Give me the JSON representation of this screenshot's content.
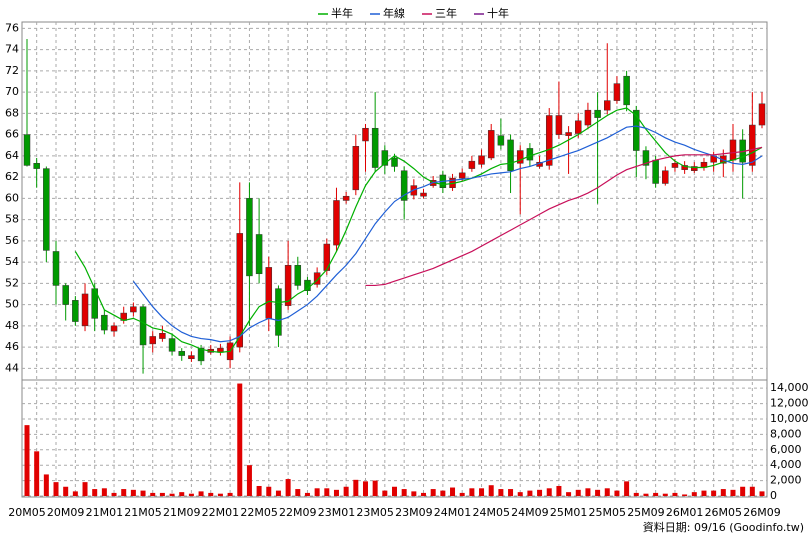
{
  "chart_data": {
    "type": "candlestick",
    "footer": "資料日期: 09/16 (Goodinfo.tw)",
    "categories": [
      "20M05",
      null,
      null,
      null,
      "20M09",
      null,
      null,
      null,
      "21M01",
      null,
      null,
      null,
      "21M05",
      null,
      null,
      null,
      "21M09",
      null,
      null,
      null,
      "22M01",
      null,
      null,
      null,
      "22M05",
      null,
      null,
      null,
      "22M09",
      null,
      null,
      null,
      "23M01",
      null,
      null,
      null,
      "23M05",
      null,
      null,
      null,
      "23M09",
      null,
      null,
      null,
      "24M01",
      null,
      null,
      null,
      "24M05",
      null,
      null,
      null,
      "24M09",
      null,
      null,
      null,
      "25M01",
      null,
      null,
      null,
      "25M05",
      null,
      null,
      null,
      "25M09",
      null,
      null,
      null,
      "26M01",
      null,
      null,
      null,
      "26M05",
      null,
      null,
      null,
      "26M09"
    ],
    "up_color": "#e00000",
    "down_color": "#009a00",
    "open": [
      66,
      63.3,
      62.8,
      55,
      51.8,
      50.4,
      48,
      51.5,
      49,
      47.5,
      48.5,
      49.3,
      49.8,
      46.3,
      46.8,
      46.8,
      45.6,
      44.9,
      45.9,
      45.5,
      45.5,
      44.8,
      46,
      60,
      56.6,
      48.7,
      51.5,
      49.9,
      53.7,
      52.3,
      51.9,
      53.2,
      55.6,
      59.8,
      60.8,
      65.4,
      66.6,
      64.5,
      63.8,
      62.6,
      60.3,
      60.2,
      61.2,
      62.2,
      61,
      61.9,
      62.8,
      63.2,
      63.8,
      65.9,
      65.5,
      63.3,
      64.7,
      63,
      63.1,
      66,
      65.9,
      66.1,
      66.9,
      68.3,
      68.3,
      69.2,
      71.5,
      68.3,
      64.5,
      63.6,
      61.4,
      62.9,
      62.7,
      62.6,
      62.9,
      63.4,
      63.3,
      63.6,
      65.5,
      63.1,
      66.9
    ],
    "high": [
      75,
      63.8,
      63,
      56,
      52,
      50.8,
      52,
      52,
      49.5,
      48.3,
      49.8,
      50.2,
      50,
      47.5,
      48,
      47.3,
      45.9,
      45.6,
      46.2,
      46.2,
      46.3,
      47,
      61.5,
      61.5,
      60,
      54.5,
      51.8,
      56,
      54.5,
      52.6,
      53.5,
      56.2,
      61,
      60.6,
      66,
      67,
      70,
      65,
      64.2,
      63,
      61.8,
      60.9,
      62.1,
      62.6,
      62.3,
      62.8,
      64,
      64.6,
      67,
      67.5,
      66,
      65,
      65.2,
      64,
      68.5,
      71,
      66.8,
      68,
      69,
      70,
      74.6,
      71.5,
      72,
      68.7,
      64.9,
      64,
      63,
      63.7,
      63.5,
      63.4,
      63.8,
      64.4,
      64.6,
      67,
      66.5,
      70,
      70
    ],
    "low": [
      63,
      61,
      54,
      50,
      48.5,
      48,
      47.5,
      47.5,
      47.2,
      47,
      48.2,
      48.9,
      43.5,
      45.5,
      46.5,
      45.2,
      44.7,
      44.6,
      44.3,
      45.3,
      45.2,
      44,
      45.5,
      48,
      52,
      47.5,
      46,
      49.5,
      51.4,
      50.9,
      51.6,
      52.8,
      55,
      59.5,
      60.3,
      62.5,
      62.5,
      62.3,
      62.5,
      58,
      59.9,
      60,
      61,
      60.5,
      60.7,
      61.6,
      62.5,
      62.9,
      63.6,
      64.6,
      60.5,
      58.5,
      63,
      62.8,
      62.7,
      65.6,
      62.3,
      65.7,
      66.5,
      59.5,
      67.9,
      68.9,
      68.2,
      62,
      61.8,
      61,
      61.2,
      62.5,
      62.3,
      62.4,
      62.6,
      62.5,
      62,
      62.5,
      60,
      62.5,
      66.6
    ],
    "close": [
      63.1,
      62.8,
      55.1,
      51.8,
      50,
      48.4,
      51,
      48.7,
      47.6,
      48,
      49.2,
      49.8,
      46.2,
      47,
      47.3,
      45.6,
      45.2,
      45.2,
      44.7,
      45.8,
      45.9,
      46.4,
      56.7,
      52.7,
      52.9,
      53.5,
      47.1,
      53.7,
      51.8,
      51.3,
      53,
      55.7,
      59.8,
      60.2,
      64.9,
      66.6,
      62.9,
      63.1,
      63,
      59.8,
      61.2,
      60.5,
      61.7,
      61,
      61.9,
      62.4,
      63.5,
      64,
      66.4,
      65,
      62.6,
      64.5,
      63.6,
      63.4,
      67.8,
      67.8,
      66.2,
      67.3,
      68.3,
      67.6,
      69.2,
      70.8,
      68.8,
      64.5,
      63.1,
      61.4,
      62.6,
      63.3,
      63.1,
      63,
      63.4,
      64,
      64,
      65.5,
      63.4,
      66.9,
      68.9
    ],
    "series": [
      {
        "name": "半年",
        "color": "#00b000",
        "values": [
          null,
          null,
          null,
          null,
          null,
          55,
          53.5,
          51.5,
          49.5,
          49,
          48.5,
          48.7,
          48.3,
          47.8,
          47.6,
          47.2,
          46.5,
          46.2,
          45.8,
          45.6,
          45.5,
          45.6,
          47,
          48.5,
          49.8,
          50.3,
          50.2,
          50.3,
          51,
          51.5,
          52.3,
          53.3,
          55,
          57,
          59.2,
          61.2,
          62.5,
          63.3,
          64,
          63.5,
          62.8,
          62,
          61.5,
          61.3,
          61.4,
          61.6,
          61.9,
          62.3,
          62.8,
          63.2,
          63.3,
          63.6,
          64,
          64.3,
          64.6,
          65,
          65.5,
          66,
          66.6,
          67.2,
          67.8,
          68.3,
          68.5,
          67.8,
          66.5,
          65.4,
          64.3,
          63.5,
          63,
          62.9,
          62.9,
          63.1,
          63.4,
          63.6,
          63.9,
          64.3,
          64.8
        ]
      },
      {
        "name": "年線",
        "color": "#1f5fd6",
        "values": [
          null,
          null,
          null,
          null,
          null,
          null,
          null,
          null,
          null,
          null,
          null,
          52.2,
          51,
          49.8,
          48.8,
          48,
          47.4,
          47,
          46.8,
          46.7,
          46.5,
          46.6,
          47,
          47.8,
          48.3,
          48.7,
          48.5,
          48.8,
          49.4,
          50,
          50.8,
          51.8,
          52.8,
          53.7,
          54.8,
          56.2,
          57.6,
          58.7,
          59.7,
          60.3,
          60.8,
          61.1,
          61.5,
          61.6,
          61.7,
          61.8,
          61.9,
          62.1,
          62.3,
          62.4,
          62.5,
          62.8,
          63,
          63.3,
          63.6,
          63.9,
          64.2,
          64.5,
          64.9,
          65.3,
          65.7,
          66.2,
          66.7,
          66.8,
          66.6,
          66.2,
          65.7,
          65.3,
          65,
          64.6,
          64.3,
          64,
          63.6,
          63.3,
          63.2,
          63.4,
          64
        ]
      },
      {
        "name": "三年",
        "color": "#c8105a",
        "values": [
          null,
          null,
          null,
          null,
          null,
          null,
          null,
          null,
          null,
          null,
          null,
          null,
          null,
          null,
          null,
          null,
          null,
          null,
          null,
          null,
          null,
          null,
          null,
          null,
          null,
          null,
          null,
          null,
          null,
          null,
          null,
          null,
          null,
          null,
          null,
          51.8,
          51.8,
          51.9,
          52.2,
          52.5,
          52.8,
          53.1,
          53.4,
          53.8,
          54.2,
          54.6,
          55,
          55.5,
          56,
          56.5,
          57,
          57.5,
          58,
          58.5,
          59,
          59.4,
          59.8,
          60.1,
          60.5,
          61,
          61.6,
          62.2,
          62.7,
          63,
          63.3,
          63.6,
          63.8,
          64,
          64.1,
          64.1,
          64.1,
          64.1,
          64.2,
          64.3,
          64.4,
          64.6,
          64.8
        ]
      },
      {
        "name": "十年",
        "color": "#7a1a8c",
        "values": [
          null,
          null,
          null,
          null,
          null,
          null,
          null,
          null,
          null,
          null,
          null,
          null,
          null,
          null,
          null,
          null,
          null,
          null,
          null,
          null,
          null,
          null,
          null,
          null,
          null,
          null,
          null,
          null,
          null,
          null,
          null,
          null,
          null,
          null,
          null,
          null,
          null,
          null,
          null,
          null,
          null,
          null,
          null,
          null,
          null,
          null,
          null,
          null,
          null,
          null,
          null,
          null,
          null,
          null,
          null,
          null,
          null,
          null,
          null,
          null,
          null,
          null,
          null,
          null,
          null,
          null,
          null,
          null,
          null,
          null,
          null,
          null,
          null,
          null,
          null,
          null,
          null
        ]
      }
    ],
    "ylim": [
      42.9,
      76.6
    ],
    "yticks": [
      44,
      46,
      48,
      50,
      52,
      54,
      56,
      58,
      60,
      62,
      64,
      66,
      68,
      70,
      72,
      74,
      76
    ],
    "volume": {
      "color": "#e00000",
      "values": [
        9200,
        5800,
        2800,
        1800,
        1200,
        600,
        1800,
        900,
        1000,
        400,
        900,
        800,
        700,
        400,
        400,
        300,
        500,
        300,
        600,
        400,
        300,
        400,
        14600,
        4000,
        1300,
        1200,
        700,
        2200,
        900,
        400,
        1000,
        1000,
        800,
        1200,
        2100,
        1900,
        2000,
        700,
        1200,
        900,
        600,
        400,
        900,
        700,
        1100,
        400,
        1000,
        1000,
        1400,
        900,
        900,
        500,
        700,
        800,
        1000,
        1300,
        500,
        800,
        1000,
        800,
        1000,
        700,
        1900,
        400,
        300,
        400,
        300,
        400,
        200,
        500,
        700,
        700,
        900,
        800,
        1200,
        1200,
        600
      ]
    },
    "y2lim": [
      0,
      14800
    ],
    "y2ticks": [
      0,
      {
        "value": 2000,
        "label": "2,000"
      },
      {
        "value": 4000,
        "label": "4,000"
      },
      {
        "value": 6000,
        "label": "6,000"
      },
      {
        "value": 8000,
        "label": "8,000"
      },
      {
        "value": 10000,
        "label": "10,000"
      },
      {
        "value": 12000,
        "label": "12,000"
      },
      {
        "value": 14000,
        "label": "14,000"
      }
    ],
    "grid": true
  }
}
